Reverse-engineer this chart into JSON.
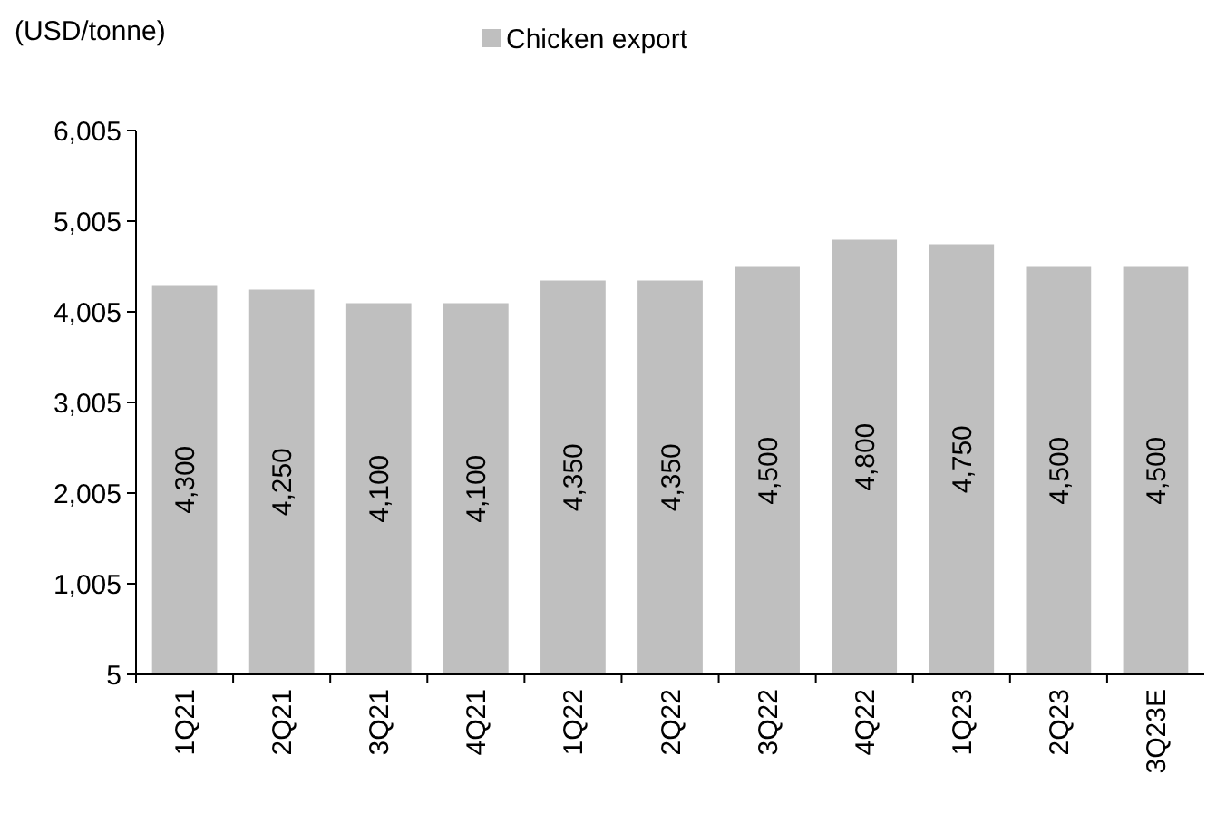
{
  "chart_data": {
    "type": "bar",
    "ylabel": "(USD/tonne)",
    "categories": [
      "1Q21",
      "2Q21",
      "3Q21",
      "4Q21",
      "1Q22",
      "2Q22",
      "3Q22",
      "4Q22",
      "1Q23",
      "2Q23",
      "3Q23E"
    ],
    "series": [
      {
        "name": "Chicken export",
        "color": "#bfbfbf",
        "values": [
          4300,
          4250,
          4100,
          4100,
          4350,
          4350,
          4500,
          4800,
          4750,
          4500,
          4500
        ],
        "value_labels": [
          "4,300",
          "4,250",
          "4,100",
          "4,100",
          "4,350",
          "4,350",
          "4,500",
          "4,800",
          "4,750",
          "4,500",
          "4,500"
        ]
      }
    ],
    "ylim": [
      5,
      6005
    ],
    "yticks": [
      5,
      {
        "value": 1005,
        "label": "1,005"
      },
      {
        "value": 2005,
        "label": "2,005"
      },
      {
        "value": 3005,
        "label": "3,005"
      },
      {
        "value": 4005,
        "label": "4,005"
      },
      {
        "value": 5005,
        "label": "5,005"
      },
      {
        "value": 6005,
        "label": "6,005"
      }
    ],
    "grid": false,
    "legend": "top"
  }
}
